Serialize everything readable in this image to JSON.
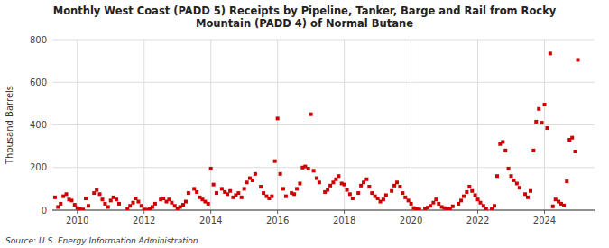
{
  "chart_data": {
    "type": "scatter",
    "title": "Monthly West Coast (PADD 5) Receipts by Pipeline, Tanker, Barge and Rail from Rocky\nMountain (PADD 4) of Normal Butane",
    "ylabel": "Thousand Barrels",
    "source": "Source: U.S. Energy Information Administration",
    "color": "#CC0000",
    "marker": "square",
    "grid": true,
    "xlim": [
      2009.25,
      2025.5
    ],
    "ylim": [
      0,
      800
    ],
    "xticks": [
      2010,
      2012,
      2014,
      2016,
      2018,
      2020,
      2022,
      2024
    ],
    "yticks": [
      0,
      200,
      400,
      600,
      800
    ],
    "x": [
      2009.33,
      2009.42,
      2009.5,
      2009.58,
      2009.67,
      2009.75,
      2009.83,
      2009.92,
      2010.0,
      2010.08,
      2010.17,
      2010.25,
      2010.33,
      2010.5,
      2010.58,
      2010.67,
      2010.75,
      2010.83,
      2010.92,
      2011.0,
      2011.08,
      2011.17,
      2011.25,
      2011.5,
      2011.58,
      2011.67,
      2011.75,
      2011.83,
      2011.92,
      2012.0,
      2012.08,
      2012.17,
      2012.25,
      2012.33,
      2012.5,
      2012.58,
      2012.67,
      2012.75,
      2012.83,
      2012.92,
      2013.0,
      2013.08,
      2013.17,
      2013.25,
      2013.33,
      2013.5,
      2013.58,
      2013.67,
      2013.75,
      2013.83,
      2013.92,
      2014.0,
      2014.08,
      2014.17,
      2014.33,
      2014.42,
      2014.5,
      2014.58,
      2014.67,
      2014.75,
      2014.83,
      2014.92,
      2015.0,
      2015.08,
      2015.17,
      2015.25,
      2015.33,
      2015.5,
      2015.58,
      2015.67,
      2015.75,
      2015.83,
      2015.92,
      2016.0,
      2016.08,
      2016.17,
      2016.25,
      2016.42,
      2016.5,
      2016.58,
      2016.67,
      2016.75,
      2016.83,
      2016.92,
      2017.0,
      2017.08,
      2017.17,
      2017.25,
      2017.42,
      2017.5,
      2017.58,
      2017.67,
      2017.75,
      2017.83,
      2017.92,
      2018.0,
      2018.08,
      2018.17,
      2018.25,
      2018.42,
      2018.5,
      2018.58,
      2018.67,
      2018.75,
      2018.83,
      2018.92,
      2019.0,
      2019.08,
      2019.17,
      2019.25,
      2019.42,
      2019.5,
      2019.58,
      2019.67,
      2019.75,
      2019.83,
      2019.92,
      2020.0,
      2020.08,
      2020.17,
      2020.25,
      2020.42,
      2020.5,
      2020.58,
      2020.67,
      2020.75,
      2020.83,
      2020.92,
      2021.0,
      2021.08,
      2021.17,
      2021.25,
      2021.42,
      2021.5,
      2021.58,
      2021.67,
      2021.75,
      2021.83,
      2021.92,
      2022.0,
      2022.08,
      2022.17,
      2022.25,
      2022.42,
      2022.5,
      2022.58,
      2022.67,
      2022.75,
      2022.83,
      2022.92,
      2023.0,
      2023.08,
      2023.17,
      2023.25,
      2023.42,
      2023.5,
      2023.58,
      2023.67,
      2023.75,
      2023.83,
      2023.92,
      2024.0,
      2024.08,
      2024.17,
      2024.25,
      2024.33,
      2024.42,
      2024.5,
      2024.58,
      2024.67,
      2024.75,
      2024.83,
      2024.92,
      2025.0
    ],
    "values": [
      60,
      15,
      30,
      65,
      75,
      50,
      45,
      25,
      10,
      5,
      3,
      55,
      20,
      80,
      95,
      75,
      50,
      30,
      15,
      45,
      60,
      50,
      30,
      5,
      20,
      35,
      55,
      40,
      20,
      3,
      2,
      8,
      15,
      30,
      50,
      55,
      40,
      50,
      35,
      20,
      8,
      15,
      25,
      40,
      80,
      100,
      85,
      60,
      50,
      40,
      30,
      195,
      120,
      80,
      100,
      85,
      75,
      90,
      60,
      70,
      80,
      60,
      100,
      130,
      150,
      140,
      170,
      110,
      80,
      65,
      55,
      65,
      230,
      430,
      170,
      100,
      65,
      80,
      75,
      100,
      125,
      200,
      205,
      195,
      450,
      185,
      150,
      130,
      85,
      95,
      115,
      130,
      145,
      160,
      125,
      120,
      95,
      75,
      55,
      80,
      115,
      130,
      145,
      110,
      80,
      65,
      55,
      40,
      50,
      70,
      90,
      115,
      130,
      110,
      80,
      60,
      45,
      30,
      10,
      5,
      3,
      8,
      12,
      20,
      35,
      50,
      30,
      15,
      10,
      5,
      8,
      18,
      30,
      45,
      65,
      85,
      110,
      90,
      70,
      50,
      35,
      20,
      8,
      5,
      20,
      160,
      310,
      320,
      280,
      195,
      160,
      140,
      125,
      105,
      75,
      60,
      90,
      280,
      415,
      475,
      410,
      495,
      385,
      735,
      18,
      50,
      40,
      30,
      22,
      135,
      330,
      340,
      275,
      705
    ]
  }
}
